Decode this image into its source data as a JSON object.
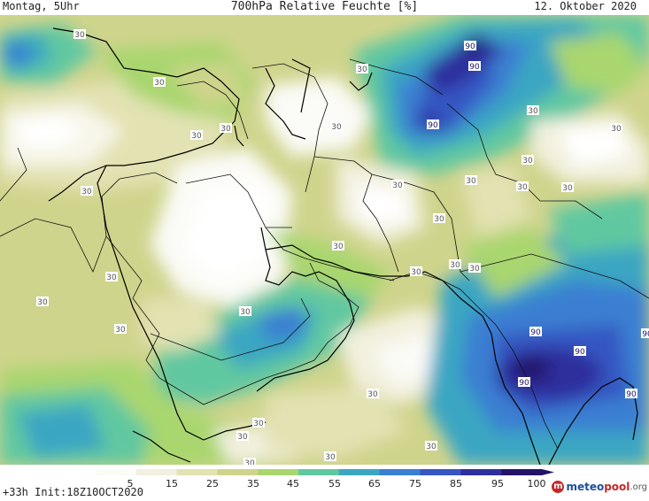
{
  "header": {
    "left": "Montag, 5Uhr",
    "title": "700hPa Relative Feuchte [%]",
    "right": "12. Oktober 2020"
  },
  "contour_labels": {
    "values": [
      "30",
      "30",
      "30",
      "30",
      "30",
      "30",
      "30",
      "30",
      "30",
      "30",
      "30",
      "30",
      "30",
      "30",
      "30",
      "30",
      "30",
      "30",
      "30",
      "30",
      "30",
      "30",
      "30",
      "30",
      "30",
      "30",
      "30",
      "30",
      "30",
      "90",
      "90",
      "90",
      "90",
      "90",
      "90",
      "90",
      "90"
    ]
  },
  "legend": {
    "ticks": [
      "5",
      "15",
      "25",
      "35",
      "45",
      "55",
      "65",
      "75",
      "85",
      "95",
      "100"
    ],
    "colors": [
      "#fbfbf7",
      "#f2f0de",
      "#e2e2b2",
      "#cfd48c",
      "#a9d66e",
      "#60c8a0",
      "#3ba6c2",
      "#3a7fd2",
      "#3656c2",
      "#2e2f9e",
      "#241468"
    ]
  },
  "run_info": "+33h Init:18Z10OCT2020",
  "brand": {
    "icon": "m",
    "part_a": "meteo",
    "part_b": "pool",
    "part_c": ".org"
  }
}
